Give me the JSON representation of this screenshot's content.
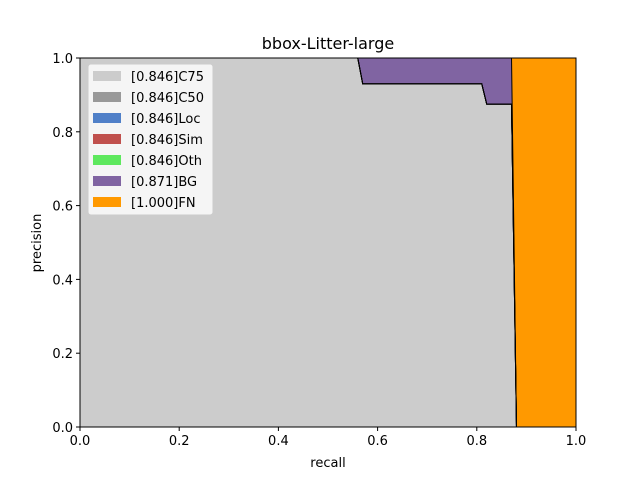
{
  "chart_data": {
    "type": "area",
    "title": "bbox-Litter-large",
    "xlabel": "recall",
    "ylabel": "precision",
    "xlim": [
      0.0,
      1.0
    ],
    "ylim": [
      0.0,
      1.0
    ],
    "xticks": [
      "0.0",
      "0.2",
      "0.4",
      "0.6",
      "0.8",
      "1.0"
    ],
    "yticks": [
      "0.0",
      "0.2",
      "0.4",
      "0.6",
      "0.8",
      "1.0"
    ],
    "grid": false,
    "legend_position": "top-left",
    "series": [
      {
        "name": "[0.846]C75",
        "color": "#cccccc",
        "points": [
          [
            0.0,
            1.0
          ],
          [
            0.56,
            1.0
          ],
          [
            0.57,
            0.93
          ],
          [
            0.81,
            0.93
          ],
          [
            0.82,
            0.875
          ],
          [
            0.87,
            0.875
          ],
          [
            0.88,
            0.0
          ]
        ]
      },
      {
        "name": "[0.846]C50",
        "color": "#999999",
        "points": [
          [
            0.0,
            1.0
          ],
          [
            0.56,
            1.0
          ],
          [
            0.57,
            0.93
          ],
          [
            0.81,
            0.93
          ],
          [
            0.82,
            0.875
          ],
          [
            0.87,
            0.875
          ],
          [
            0.88,
            0.0
          ]
        ]
      },
      {
        "name": "[0.846]Loc",
        "color": "#5080c8",
        "points": [
          [
            0.0,
            1.0
          ],
          [
            0.56,
            1.0
          ],
          [
            0.57,
            0.93
          ],
          [
            0.81,
            0.93
          ],
          [
            0.82,
            0.875
          ],
          [
            0.87,
            0.875
          ],
          [
            0.88,
            0.0
          ]
        ]
      },
      {
        "name": "[0.846]Sim",
        "color": "#c0504d",
        "points": [
          [
            0.0,
            1.0
          ],
          [
            0.56,
            1.0
          ],
          [
            0.57,
            0.93
          ],
          [
            0.81,
            0.93
          ],
          [
            0.82,
            0.875
          ],
          [
            0.87,
            0.875
          ],
          [
            0.88,
            0.0
          ]
        ]
      },
      {
        "name": "[0.846]Oth",
        "color": "#5ee85e",
        "points": [
          [
            0.0,
            1.0
          ],
          [
            0.56,
            1.0
          ],
          [
            0.57,
            0.93
          ],
          [
            0.81,
            0.93
          ],
          [
            0.82,
            0.875
          ],
          [
            0.87,
            0.875
          ],
          [
            0.88,
            0.0
          ]
        ]
      },
      {
        "name": "[0.871]BG",
        "color": "#8064a2",
        "points": [
          [
            0.0,
            1.0
          ],
          [
            0.87,
            1.0
          ],
          [
            0.88,
            0.0
          ]
        ]
      },
      {
        "name": "[1.000]FN",
        "color": "#ff9900",
        "points": [
          [
            0.0,
            1.0
          ],
          [
            1.0,
            1.0
          ]
        ]
      }
    ]
  }
}
